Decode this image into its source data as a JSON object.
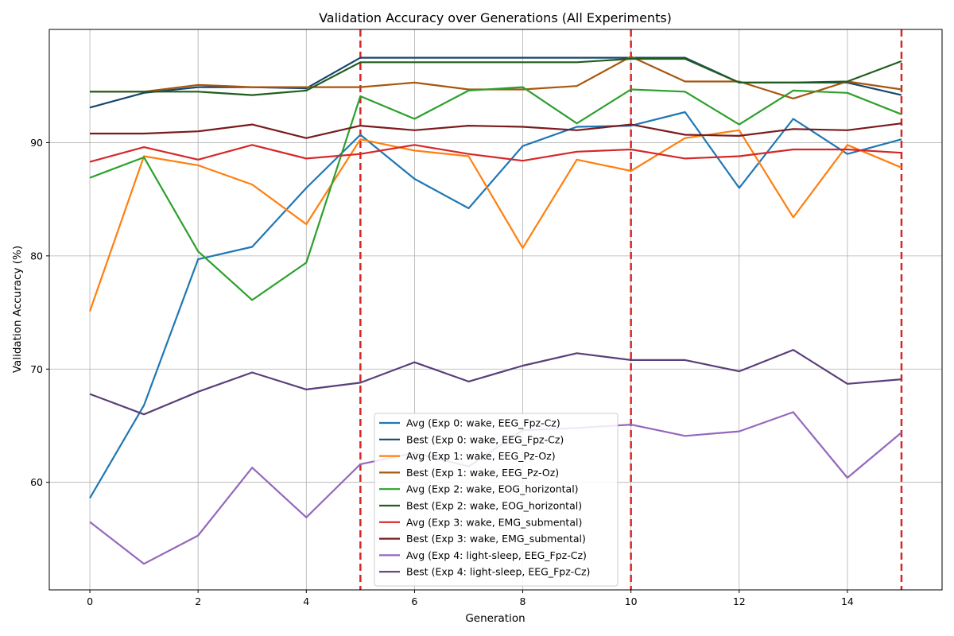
{
  "chart_data": {
    "type": "line",
    "title": "Validation Accuracy over Generations (All Experiments)",
    "xlabel": "Generation",
    "ylabel": "Validation Accuracy (%)",
    "xlim": [
      -0.75,
      15.75
    ],
    "ylim": [
      50.5,
      100.0
    ],
    "xticks": [
      0,
      2,
      4,
      6,
      8,
      10,
      12,
      14
    ],
    "yticks": [
      60,
      70,
      80,
      90
    ],
    "grid": true,
    "legend_position": "lower center",
    "vlines": {
      "x": [
        5,
        10,
        15
      ],
      "color": "#d62728",
      "style": "dashed"
    },
    "x": [
      0,
      1,
      2,
      3,
      4,
      5,
      6,
      7,
      8,
      9,
      10,
      11,
      12,
      13,
      14,
      15
    ],
    "series": [
      {
        "name": "Avg (Exp 0: wake, EEG_Fpz-Cz)",
        "color": "#1f77b4",
        "values": [
          58.6,
          66.8,
          79.7,
          80.8,
          86.0,
          90.7,
          86.8,
          84.2,
          89.7,
          91.4,
          91.5,
          92.7,
          86.0,
          92.1,
          89.0,
          90.3
        ]
      },
      {
        "name": "Best (Exp 0: wake, EEG_Fpz-Cz)",
        "color": "#17466e",
        "values": [
          93.1,
          94.4,
          94.9,
          94.9,
          94.8,
          97.5,
          97.5,
          97.5,
          97.5,
          97.5,
          97.5,
          97.5,
          95.3,
          95.3,
          95.3,
          94.2
        ]
      },
      {
        "name": "Avg (Exp 1: wake, EEG_Pz-Oz)",
        "color": "#ff7f0e",
        "values": [
          75.1,
          88.8,
          88.0,
          86.3,
          82.8,
          90.3,
          89.3,
          88.8,
          80.7,
          88.5,
          87.5,
          90.4,
          91.1,
          83.4,
          89.8,
          87.8
        ]
      },
      {
        "name": "Best (Exp 1: wake, EEG_Pz-Oz)",
        "color": "#a6570f",
        "values": [
          94.5,
          94.5,
          95.1,
          94.9,
          94.9,
          94.9,
          95.3,
          94.7,
          94.7,
          95.0,
          97.6,
          95.4,
          95.4,
          93.9,
          95.4,
          94.7
        ]
      },
      {
        "name": "Avg (Exp 2: wake, EOG_horizontal)",
        "color": "#2ca02c",
        "values": [
          86.9,
          88.7,
          80.4,
          76.1,
          79.4,
          94.1,
          92.1,
          94.6,
          94.9,
          91.7,
          94.7,
          94.5,
          91.6,
          94.6,
          94.4,
          92.5
        ]
      },
      {
        "name": "Best (Exp 2: wake, EOG_horizontal)",
        "color": "#1f5d1f",
        "values": [
          94.5,
          94.5,
          94.5,
          94.2,
          94.6,
          97.1,
          97.1,
          97.1,
          97.1,
          97.1,
          97.4,
          97.4,
          95.3,
          95.3,
          95.4,
          97.2
        ]
      },
      {
        "name": "Avg (Exp 3: wake, EMG_submental)",
        "color": "#d62728",
        "values": [
          88.3,
          89.6,
          88.5,
          89.8,
          88.6,
          89.0,
          89.8,
          89.0,
          88.4,
          89.2,
          89.4,
          88.6,
          88.8,
          89.4,
          89.4,
          89.1
        ]
      },
      {
        "name": "Best (Exp 3: wake, EMG_submental)",
        "color": "#7a1a1e",
        "values": [
          90.8,
          90.8,
          91.0,
          91.6,
          90.4,
          91.5,
          91.1,
          91.5,
          91.4,
          91.1,
          91.6,
          90.7,
          90.6,
          91.2,
          91.1,
          91.7
        ]
      },
      {
        "name": "Avg (Exp 4: light-sleep, EEG_Fpz-Cz)",
        "color": "#9467bd",
        "values": [
          56.5,
          52.8,
          55.3,
          61.3,
          56.9,
          61.6,
          62.6,
          61.4,
          64.6,
          64.8,
          65.1,
          64.1,
          64.5,
          66.2,
          60.4,
          64.4
        ]
      },
      {
        "name": "Best (Exp 4: light-sleep, EEG_Fpz-Cz)",
        "color": "#5a3e7a",
        "values": [
          67.8,
          66.0,
          68.0,
          69.7,
          68.2,
          68.8,
          70.6,
          68.9,
          70.3,
          71.4,
          70.8,
          70.8,
          69.8,
          71.7,
          68.7,
          69.1
        ]
      }
    ]
  }
}
